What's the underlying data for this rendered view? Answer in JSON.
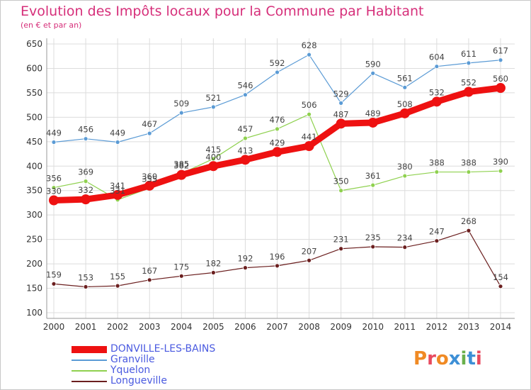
{
  "title": "Evolution des Impôts locaux pour la Commune par Habitant",
  "subtitle": "(en € et par an)",
  "logo_text": "Proxiti",
  "chart_data": {
    "type": "line",
    "x": [
      2000,
      2001,
      2002,
      2003,
      2004,
      2005,
      2006,
      2007,
      2008,
      2009,
      2010,
      2011,
      2012,
      2013,
      2014
    ],
    "ylim": [
      100,
      650
    ],
    "yticks": [
      100,
      150,
      200,
      250,
      300,
      350,
      400,
      450,
      500,
      550,
      600,
      650
    ],
    "grid": true,
    "legend_position": "bottom-left",
    "series": [
      {
        "name": "DONVILLE-LES-BAINS",
        "color": "#ee1111",
        "values": [
          330,
          332,
          341,
          360,
          382,
          400,
          413,
          429,
          441,
          487,
          489,
          508,
          532,
          552,
          560
        ]
      },
      {
        "name": "Granville",
        "color": "#5b9bd5",
        "values": [
          449,
          456,
          449,
          467,
          509,
          521,
          546,
          592,
          628,
          529,
          590,
          561,
          604,
          611,
          617
        ]
      },
      {
        "name": "Yquelon",
        "color": "#8fd14f",
        "values": [
          356,
          369,
          331,
          355,
          385,
          415,
          457,
          476,
          506,
          350,
          361,
          380,
          388,
          388,
          390
        ]
      },
      {
        "name": "Longueville",
        "color": "#6b1f1f",
        "values": [
          159,
          153,
          155,
          167,
          175,
          182,
          192,
          196,
          207,
          231,
          235,
          234,
          247,
          268,
          154
        ]
      }
    ]
  }
}
